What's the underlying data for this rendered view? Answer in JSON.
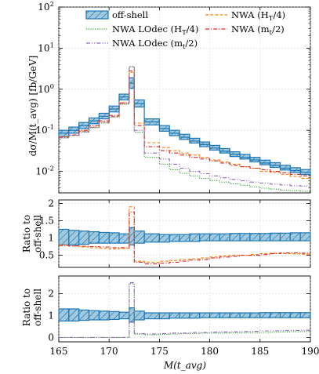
{
  "chart_data": [
    {
      "type": "line",
      "panel": "main",
      "ylabel": "dσ/M(t_avg) [fb/GeV]",
      "yscale": "log",
      "ylim": [
        0.003,
        100
      ],
      "xlim": [
        165,
        190
      ],
      "ytick_base": "10",
      "ytick_exponents": [
        "-2",
        "-1",
        "0",
        "1",
        "2"
      ],
      "grid": true,
      "legend_position": "top",
      "legend": [
        {
          "key": "offshell",
          "label": "off-shell",
          "color": "#1f77b4",
          "style": "band"
        },
        {
          "key": "nwa_ht4",
          "label": "NWA (H_T/4)",
          "color": "#ff7f0e",
          "style": "dashed"
        },
        {
          "key": "lodec_ht4",
          "label": "NWA LOdec (H_T/4)",
          "color": "#2ca02c",
          "style": "dotted"
        },
        {
          "key": "nwa_mt2",
          "label": "NWA (m_t/2)",
          "color": "#d62728",
          "style": "dashdot"
        },
        {
          "key": "lodec_mt2",
          "label": "NWA LOdec (m_t/2)",
          "color": "#9467bd",
          "style": "dashdotdot"
        }
      ],
      "bin_edges": [
        165,
        166,
        167,
        168,
        169,
        170,
        171,
        172,
        172.5,
        173.5,
        175,
        176,
        177,
        178,
        179,
        180,
        181,
        182,
        183,
        184,
        185,
        186,
        187,
        188,
        189,
        190
      ],
      "series": [
        {
          "name": "off-shell",
          "central": [
            0.085,
            0.1,
            0.13,
            0.17,
            0.22,
            0.33,
            0.65,
            1.4,
            0.45,
            0.16,
            0.11,
            0.085,
            0.068,
            0.055,
            0.045,
            0.037,
            0.031,
            0.026,
            0.022,
            0.019,
            0.016,
            0.014,
            0.012,
            0.0105,
            0.0095
          ],
          "low": [
            0.07,
            0.085,
            0.11,
            0.145,
            0.19,
            0.28,
            0.55,
            1.05,
            0.37,
            0.135,
            0.095,
            0.074,
            0.06,
            0.049,
            0.04,
            0.033,
            0.028,
            0.023,
            0.02,
            0.017,
            0.0145,
            0.0125,
            0.0108,
            0.0094,
            0.0084
          ],
          "high": [
            0.1,
            0.12,
            0.155,
            0.2,
            0.26,
            0.39,
            0.76,
            1.9,
            0.55,
            0.19,
            0.13,
            0.1,
            0.08,
            0.064,
            0.052,
            0.043,
            0.036,
            0.03,
            0.026,
            0.022,
            0.0188,
            0.0163,
            0.0141,
            0.0123,
            0.0111
          ]
        },
        {
          "name": "NWA (H_T/4)",
          "values": [
            0.07,
            0.075,
            0.095,
            0.12,
            0.16,
            0.22,
            0.46,
            2.6,
            0.15,
            0.05,
            0.038,
            0.032,
            0.028,
            0.025,
            0.022,
            0.019,
            0.017,
            0.015,
            0.013,
            0.012,
            0.01,
            0.0095,
            0.0085,
            0.0075,
            0.0068
          ]
        },
        {
          "name": "NWA LOdec (H_T/4)",
          "values": [
            0.065,
            0.075,
            0.09,
            0.115,
            0.15,
            0.21,
            0.43,
            3.5,
            0.09,
            0.022,
            0.015,
            0.011,
            0.009,
            0.0078,
            0.0068,
            0.006,
            0.0055,
            0.005,
            0.0046,
            0.0042,
            0.0039,
            0.0037,
            0.0035,
            0.0034,
            0.0033
          ]
        },
        {
          "name": "NWA (m_t/2)",
          "values": [
            0.068,
            0.077,
            0.1,
            0.13,
            0.17,
            0.23,
            0.47,
            2.8,
            0.13,
            0.04,
            0.032,
            0.028,
            0.025,
            0.022,
            0.02,
            0.018,
            0.016,
            0.014,
            0.013,
            0.012,
            0.011,
            0.01,
            0.0093,
            0.0085,
            0.0078
          ]
        },
        {
          "name": "NWA LOdec (m_t/2)",
          "values": [
            0.066,
            0.076,
            0.092,
            0.118,
            0.155,
            0.215,
            0.44,
            3.6,
            0.1,
            0.028,
            0.02,
            0.015,
            0.012,
            0.01,
            0.0088,
            0.0078,
            0.007,
            0.0064,
            0.0059,
            0.0055,
            0.0052,
            0.0049,
            0.0047,
            0.0045,
            0.0044
          ]
        }
      ]
    },
    {
      "type": "line",
      "panel": "ratio1",
      "ylabel_line1": "Ratio to",
      "ylabel_line2": "off-shell",
      "ylim": [
        0.15,
        2.1
      ],
      "yticks": [
        "0.5",
        "1",
        "1.5",
        "2"
      ],
      "series": [
        {
          "name": "off-shell",
          "low": [
            0.8,
            0.8,
            0.82,
            0.85,
            0.85,
            0.85,
            0.85,
            0.8,
            0.85,
            0.88,
            0.88,
            0.9,
            0.9,
            0.9,
            0.92,
            0.92,
            0.92,
            0.92,
            0.92,
            0.92,
            0.92,
            0.92,
            0.92,
            0.92,
            0.92
          ],
          "high": [
            1.25,
            1.22,
            1.2,
            1.18,
            1.16,
            1.15,
            1.12,
            1.3,
            1.2,
            1.12,
            1.1,
            1.1,
            1.1,
            1.12,
            1.12,
            1.12,
            1.12,
            1.13,
            1.13,
            1.13,
            1.13,
            1.14,
            1.14,
            1.15,
            1.15
          ]
        },
        {
          "name": "NWA (H_T/4)",
          "values": [
            0.8,
            0.77,
            0.74,
            0.72,
            0.7,
            0.68,
            0.7,
            1.9,
            0.33,
            0.3,
            0.33,
            0.35,
            0.38,
            0.4,
            0.42,
            0.45,
            0.48,
            0.5,
            0.5,
            0.52,
            0.55,
            0.56,
            0.55,
            0.54,
            0.53
          ]
        },
        {
          "name": "NWA (m_t/2)",
          "values": [
            0.78,
            0.77,
            0.76,
            0.75,
            0.74,
            0.72,
            0.72,
            1.75,
            0.3,
            0.25,
            0.27,
            0.3,
            0.33,
            0.36,
            0.38,
            0.42,
            0.45,
            0.47,
            0.5,
            0.5,
            0.52,
            0.55,
            0.57,
            0.57,
            0.56
          ]
        }
      ]
    },
    {
      "type": "line",
      "panel": "ratio2",
      "ylabel_line1": "Ratio to",
      "ylabel_line2": "off-shell",
      "xlabel": "M(t_avg)",
      "ylim": [
        -0.2,
        2.8
      ],
      "yticks": [
        "0",
        "1",
        "2"
      ],
      "xticks": [
        "165",
        "170",
        "175",
        "180",
        "185",
        "190"
      ],
      "series": [
        {
          "name": "off-shell",
          "low": [
            0.75,
            0.75,
            0.78,
            0.8,
            0.8,
            0.82,
            0.85,
            0.7,
            0.8,
            0.85,
            0.85,
            0.88,
            0.88,
            0.88,
            0.9,
            0.9,
            0.9,
            0.9,
            0.9,
            0.9,
            0.9,
            0.9,
            0.9,
            0.9,
            0.9
          ],
          "high": [
            1.3,
            1.3,
            1.25,
            1.22,
            1.2,
            1.18,
            1.15,
            1.35,
            1.2,
            1.12,
            1.12,
            1.12,
            1.12,
            1.12,
            1.12,
            1.12,
            1.12,
            1.12,
            1.12,
            1.12,
            1.13,
            1.13,
            1.13,
            1.13,
            1.13
          ]
        },
        {
          "name": "NWA LOdec (H_T/4)",
          "values": [
            0.0,
            0.0,
            0.0,
            0.0,
            0.0,
            0.0,
            0.0,
            2.45,
            0.15,
            0.12,
            0.14,
            0.16,
            0.18,
            0.18,
            0.2,
            0.2,
            0.2,
            0.21,
            0.22,
            0.22,
            0.23,
            0.24,
            0.25,
            0.26,
            0.27
          ]
        },
        {
          "name": "NWA LOdec (m_t/2)",
          "values": [
            0.0,
            0.0,
            0.0,
            0.0,
            0.0,
            0.0,
            0.0,
            2.5,
            0.18,
            0.16,
            0.18,
            0.2,
            0.2,
            0.22,
            0.22,
            0.24,
            0.25,
            0.26,
            0.27,
            0.28,
            0.3,
            0.3,
            0.31,
            0.32,
            0.33
          ]
        }
      ]
    }
  ]
}
